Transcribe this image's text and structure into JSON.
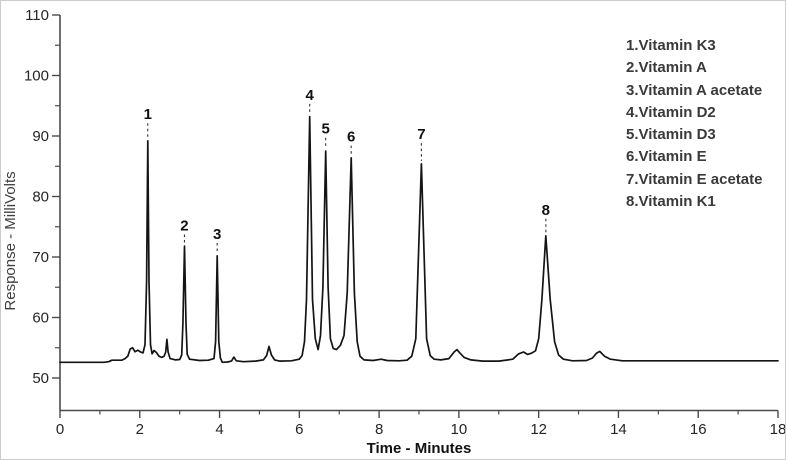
{
  "figure": {
    "background": "#ffffff",
    "border_color": "#cccccc",
    "trace_color": "#141414",
    "axis_color": "#4b4b4b",
    "tick_label_color": "#262626",
    "xlabel_color": "#111111",
    "ylabel_color": "#3f3f3f",
    "legend_color": "#3a3a3a",
    "peak_label_color": "#111111"
  },
  "legend": {
    "items": [
      "1.Vitamin K3",
      "2.Vitamin A",
      "3.Vitamin A acetate",
      "4.Vitamin D2",
      "5.Vitamin D3",
      "6.Vitamin E",
      "7.Vitamin E acetate",
      "8.Vitamin K1"
    ]
  },
  "chart_data": {
    "type": "line",
    "title": "",
    "xlabel": "Time - Minutes",
    "ylabel": "Response - MilliVolts",
    "xlim": [
      0,
      18
    ],
    "ylim": [
      50,
      110
    ],
    "x_major_ticks": [
      0,
      2,
      4,
      6,
      8,
      10,
      12,
      14,
      16,
      18
    ],
    "x_minor_ticks": [
      1,
      3,
      5,
      7,
      9,
      11,
      13,
      15,
      17
    ],
    "y_major_ticks": [
      50,
      60,
      70,
      80,
      90,
      100,
      110
    ],
    "y_minor_ticks": [
      55,
      65,
      75,
      85,
      95,
      105
    ],
    "grid": false,
    "legend_position": "upper-right",
    "baseline_mv": 52.8,
    "peaks": [
      {
        "num": "1",
        "name": "Vitamin K3",
        "rt_min": 2.2,
        "apex_mv": 89.2,
        "label_mv": 93.6
      },
      {
        "num": "2",
        "name": "Vitamin A",
        "rt_min": 3.12,
        "apex_mv": 71.8,
        "label_mv": 75.2
      },
      {
        "num": "3",
        "name": "Vitamin A acetate",
        "rt_min": 3.94,
        "apex_mv": 70.2,
        "label_mv": 73.8
      },
      {
        "num": "4",
        "name": "Vitamin D2",
        "rt_min": 6.26,
        "apex_mv": 93.2,
        "label_mv": 96.8
      },
      {
        "num": "5",
        "name": "Vitamin D3",
        "rt_min": 6.66,
        "apex_mv": 87.5,
        "label_mv": 91.2
      },
      {
        "num": "6",
        "name": "Vitamin E",
        "rt_min": 7.3,
        "apex_mv": 86.4,
        "label_mv": 89.9
      },
      {
        "num": "7",
        "name": "Vitamin E acetate",
        "rt_min": 9.06,
        "apex_mv": 85.4,
        "label_mv": 90.3
      },
      {
        "num": "8",
        "name": "Vitamin K1",
        "rt_min": 12.18,
        "apex_mv": 73.5,
        "label_mv": 77.8
      }
    ],
    "trace": [
      [
        0,
        52.6
      ],
      [
        0.6,
        52.6
      ],
      [
        1.1,
        52.6
      ],
      [
        1.22,
        52.7
      ],
      [
        1.3,
        52.95
      ],
      [
        1.55,
        52.95
      ],
      [
        1.63,
        53.2
      ],
      [
        1.7,
        53.6
      ],
      [
        1.76,
        54.8
      ],
      [
        1.82,
        55.0
      ],
      [
        1.88,
        54.35
      ],
      [
        1.95,
        54.6
      ],
      [
        2.02,
        54.3
      ],
      [
        2.08,
        54.15
      ],
      [
        2.13,
        55.5
      ],
      [
        2.17,
        66
      ],
      [
        2.2,
        89.2
      ],
      [
        2.23,
        66
      ],
      [
        2.27,
        55.5
      ],
      [
        2.31,
        54.0
      ],
      [
        2.36,
        54.55
      ],
      [
        2.42,
        54.2
      ],
      [
        2.48,
        53.6
      ],
      [
        2.55,
        53.4
      ],
      [
        2.61,
        53.6
      ],
      [
        2.65,
        54.3
      ],
      [
        2.68,
        56.4
      ],
      [
        2.71,
        54.3
      ],
      [
        2.76,
        53.2
      ],
      [
        2.9,
        53.0
      ],
      [
        3.0,
        53.05
      ],
      [
        3.05,
        53.8
      ],
      [
        3.08,
        59
      ],
      [
        3.12,
        71.8
      ],
      [
        3.16,
        59
      ],
      [
        3.19,
        53.9
      ],
      [
        3.25,
        53.1
      ],
      [
        3.5,
        52.9
      ],
      [
        3.72,
        52.95
      ],
      [
        3.86,
        53.2
      ],
      [
        3.9,
        56
      ],
      [
        3.94,
        70.2
      ],
      [
        3.98,
        56
      ],
      [
        4.02,
        53.3
      ],
      [
        4.07,
        52.6
      ],
      [
        4.2,
        52.65
      ],
      [
        4.3,
        52.8
      ],
      [
        4.36,
        53.45
      ],
      [
        4.42,
        52.85
      ],
      [
        4.6,
        52.7
      ],
      [
        4.9,
        52.8
      ],
      [
        5.1,
        53.0
      ],
      [
        5.18,
        53.7
      ],
      [
        5.24,
        55.2
      ],
      [
        5.3,
        53.8
      ],
      [
        5.38,
        53.0
      ],
      [
        5.5,
        52.8
      ],
      [
        5.8,
        52.85
      ],
      [
        6.0,
        53.1
      ],
      [
        6.07,
        53.7
      ],
      [
        6.13,
        56
      ],
      [
        6.18,
        63
      ],
      [
        6.26,
        93.2
      ],
      [
        6.33,
        63
      ],
      [
        6.4,
        56.5
      ],
      [
        6.47,
        54.7
      ],
      [
        6.53,
        57
      ],
      [
        6.59,
        65
      ],
      [
        6.66,
        87.5
      ],
      [
        6.72,
        65
      ],
      [
        6.78,
        56.5
      ],
      [
        6.85,
        54.9
      ],
      [
        6.93,
        54.7
      ],
      [
        7.03,
        55.4
      ],
      [
        7.12,
        57
      ],
      [
        7.2,
        64
      ],
      [
        7.3,
        86.4
      ],
      [
        7.38,
        64
      ],
      [
        7.45,
        56
      ],
      [
        7.52,
        53.6
      ],
      [
        7.62,
        53.0
      ],
      [
        7.85,
        52.9
      ],
      [
        8.05,
        53.1
      ],
      [
        8.2,
        52.9
      ],
      [
        8.5,
        52.85
      ],
      [
        8.7,
        52.95
      ],
      [
        8.82,
        53.6
      ],
      [
        8.92,
        56.5
      ],
      [
        9.06,
        85.4
      ],
      [
        9.19,
        56.5
      ],
      [
        9.28,
        53.7
      ],
      [
        9.38,
        53.1
      ],
      [
        9.55,
        53.0
      ],
      [
        9.75,
        53.2
      ],
      [
        9.88,
        54.3
      ],
      [
        9.95,
        54.7
      ],
      [
        10.03,
        54.1
      ],
      [
        10.13,
        53.4
      ],
      [
        10.3,
        53.0
      ],
      [
        10.6,
        52.8
      ],
      [
        11.0,
        52.8
      ],
      [
        11.35,
        53.1
      ],
      [
        11.5,
        54.0
      ],
      [
        11.62,
        54.3
      ],
      [
        11.72,
        53.9
      ],
      [
        11.82,
        54.1
      ],
      [
        11.92,
        54.5
      ],
      [
        12.0,
        56.5
      ],
      [
        12.08,
        63
      ],
      [
        12.18,
        73.5
      ],
      [
        12.29,
        63
      ],
      [
        12.4,
        56
      ],
      [
        12.5,
        53.8
      ],
      [
        12.62,
        53.1
      ],
      [
        12.85,
        52.85
      ],
      [
        13.2,
        52.9
      ],
      [
        13.35,
        53.3
      ],
      [
        13.45,
        54.1
      ],
      [
        13.53,
        54.4
      ],
      [
        13.65,
        53.6
      ],
      [
        13.8,
        53.1
      ],
      [
        14.1,
        52.85
      ],
      [
        15,
        52.85
      ],
      [
        16,
        52.85
      ],
      [
        17,
        52.85
      ],
      [
        18,
        52.85
      ]
    ]
  }
}
